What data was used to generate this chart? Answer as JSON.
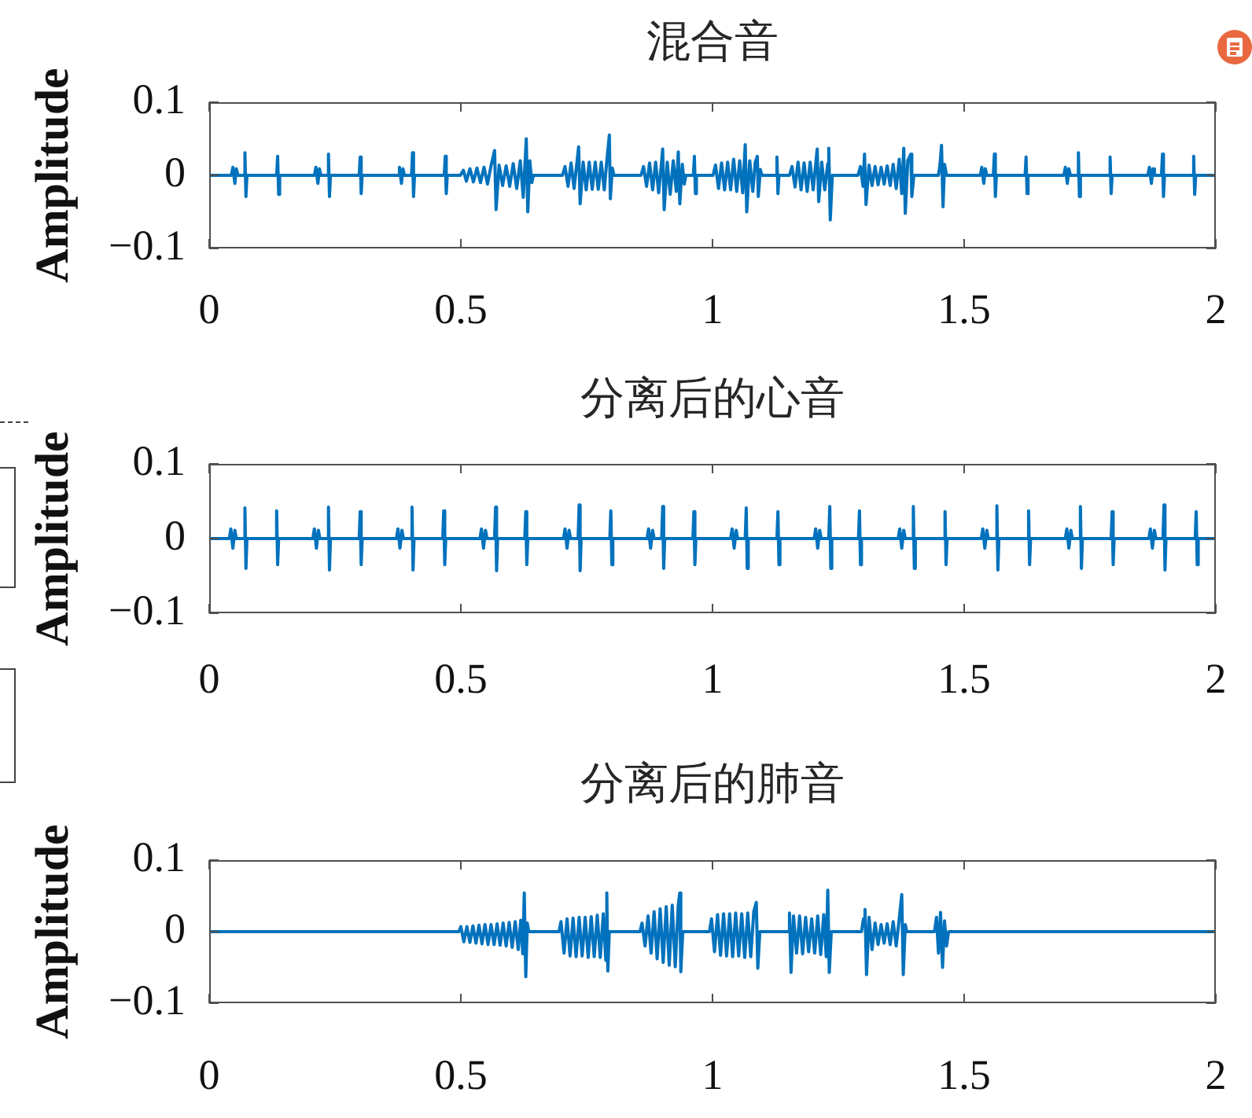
{
  "chart_data": [
    {
      "type": "line",
      "title": "混合音",
      "ylabel": "Amplitude",
      "color": "#0072bd",
      "xlim": [
        0,
        2
      ],
      "ylim": [
        -0.1,
        0.1
      ],
      "xticks": [
        0,
        0.5,
        1,
        1.5,
        2
      ],
      "yticks": [
        -0.1,
        0,
        0.1
      ],
      "x": [
        0,
        0.044,
        0.047,
        0.051,
        0.054,
        0.057,
        0.069,
        0.071,
        0.073,
        0.075,
        0.134,
        0.136,
        0.138,
        0.14,
        0.209,
        0.212,
        0.216,
        0.219,
        0.222,
        0.235,
        0.237,
        0.239,
        0.241,
        0.298,
        0.3,
        0.302,
        0.304,
        0.375,
        0.378,
        0.382,
        0.385,
        0.388,
        0.402,
        0.404,
        0.406,
        0.408,
        0.467,
        0.469,
        0.471,
        0.473,
        0.499,
        0.505,
        0.511,
        0.518,
        0.525,
        0.532,
        0.539,
        0.546,
        0.553,
        0.56,
        0.567,
        0.57,
        0.576,
        0.583,
        0.59,
        0.597,
        0.604,
        0.611,
        0.618,
        0.624,
        0.63,
        0.633,
        0.637,
        0.641,
        0.644,
        0.702,
        0.707,
        0.713,
        0.719,
        0.725,
        0.731,
        0.734,
        0.737,
        0.743,
        0.749,
        0.755,
        0.761,
        0.767,
        0.773,
        0.779,
        0.785,
        0.79,
        0.795,
        0.797,
        0.801,
        0.804,
        0.858,
        0.863,
        0.869,
        0.875,
        0.881,
        0.887,
        0.893,
        0.899,
        0.901,
        0.904,
        0.91,
        0.916,
        0.922,
        0.928,
        0.932,
        0.935,
        0.94,
        0.944,
        0.947,
        0.962,
        0.964,
        0.966,
        0.968,
        1.001,
        1.006,
        1.012,
        1.018,
        1.024,
        1.03,
        1.036,
        1.042,
        1.048,
        1.054,
        1.06,
        1.065,
        1.068,
        1.074,
        1.08,
        1.085,
        1.089,
        1.091,
        1.095,
        1.098,
        1.126,
        1.128,
        1.13,
        1.132,
        1.153,
        1.158,
        1.164,
        1.17,
        1.176,
        1.182,
        1.188,
        1.194,
        1.2,
        1.208,
        1.211,
        1.217,
        1.223,
        1.229,
        1.231,
        1.234,
        1.238,
        1.289,
        1.294,
        1.299,
        1.302,
        1.305,
        1.311,
        1.317,
        1.323,
        1.329,
        1.335,
        1.341,
        1.347,
        1.353,
        1.359,
        1.365,
        1.371,
        1.376,
        1.38,
        1.383,
        1.388,
        1.394,
        1.396,
        1.4,
        1.449,
        1.452,
        1.455,
        1.458,
        1.461,
        1.465,
        1.532,
        1.535,
        1.539,
        1.542,
        1.545,
        1.558,
        1.56,
        1.562,
        1.564,
        1.621,
        1.623,
        1.625,
        1.627,
        1.698,
        1.701,
        1.705,
        1.708,
        1.711,
        1.725,
        1.727,
        1.729,
        1.731,
        1.788,
        1.79,
        1.792,
        1.794,
        1.865,
        1.868,
        1.872,
        1.875,
        1.878,
        1.892,
        1.894,
        1.896,
        1.898,
        1.954,
        1.956,
        1.958,
        1.96,
        2
      ],
      "values": [
        0,
        0,
        0.011,
        -0.011,
        0.009,
        0,
        0,
        0.031,
        -0.029,
        0,
        0,
        0.026,
        -0.026,
        0,
        0,
        0.011,
        -0.011,
        0.009,
        0,
        0,
        0.029,
        -0.029,
        0,
        0,
        0.025,
        -0.025,
        0,
        0,
        0.011,
        -0.011,
        0.009,
        0,
        0,
        0.031,
        -0.029,
        0,
        0,
        0.026,
        -0.025,
        0,
        0,
        0.007,
        -0.008,
        0.009,
        -0.009,
        0.01,
        -0.01,
        0.011,
        -0.012,
        0.013,
        0.034,
        -0.047,
        0.014,
        -0.014,
        0.013,
        -0.015,
        0.016,
        -0.018,
        0.02,
        -0.03,
        0.05,
        -0.05,
        0.02,
        -0.01,
        0,
        0,
        0.012,
        -0.015,
        0.017,
        -0.018,
        0.02,
        0.039,
        -0.039,
        0.018,
        -0.02,
        0.018,
        -0.019,
        0.018,
        -0.019,
        0.018,
        -0.02,
        0.02,
        0.055,
        -0.032,
        0.01,
        0,
        0,
        0.012,
        -0.015,
        0.017,
        -0.02,
        0.018,
        -0.024,
        0.02,
        0.036,
        -0.047,
        0.018,
        -0.026,
        0.02,
        -0.022,
        0.032,
        -0.039,
        0.015,
        -0.012,
        0,
        0,
        0.026,
        -0.025,
        0,
        0,
        0.014,
        -0.018,
        0.017,
        -0.02,
        0.018,
        -0.02,
        0.022,
        -0.022,
        0.02,
        -0.024,
        0.042,
        -0.05,
        0.02,
        -0.022,
        0.018,
        0.026,
        -0.029,
        0.008,
        0,
        0,
        0.025,
        -0.025,
        0,
        0,
        0.012,
        -0.016,
        0.018,
        -0.02,
        0.017,
        -0.022,
        0.018,
        -0.02,
        0.036,
        -0.036,
        0.018,
        -0.02,
        0.016,
        0.037,
        -0.061,
        0,
        0,
        0.012,
        -0.015,
        0.029,
        -0.04,
        0.014,
        -0.014,
        0.012,
        -0.013,
        0.011,
        -0.012,
        0.013,
        -0.014,
        0.015,
        -0.018,
        0.022,
        -0.025,
        0.037,
        -0.052,
        0.02,
        0.029,
        -0.029,
        0,
        0,
        0.015,
        0.041,
        -0.043,
        0.015,
        0,
        0,
        0.011,
        -0.011,
        0.009,
        0,
        0,
        0.029,
        -0.029,
        0,
        0,
        0.025,
        -0.025,
        0,
        0,
        0.011,
        -0.011,
        0.009,
        0,
        0,
        0.031,
        -0.029,
        0,
        0,
        0.025,
        -0.025,
        0,
        0,
        0.011,
        -0.011,
        0.009,
        0,
        0,
        0.029,
        -0.029,
        0,
        0,
        0.026,
        -0.026,
        0,
        0
      ]
    },
    {
      "type": "line",
      "title": "分离后的心音",
      "ylabel": "Amplitude",
      "color": "#0072bd",
      "xlim": [
        0,
        2
      ],
      "ylim": [
        -0.1,
        0.1
      ],
      "xticks": [
        0,
        0.5,
        1,
        1.5,
        2
      ],
      "yticks": [
        -0.1,
        0,
        0.1
      ],
      "x": [
        0,
        0.04,
        0.043,
        0.047,
        0.051,
        0.054,
        0.069,
        0.071,
        0.073,
        0.075,
        0.132,
        0.134,
        0.136,
        0.138,
        0.206,
        0.209,
        0.213,
        0.217,
        0.22,
        0.235,
        0.237,
        0.239,
        0.241,
        0.298,
        0.3,
        0.302,
        0.304,
        0.372,
        0.375,
        0.379,
        0.383,
        0.386,
        0.401,
        0.403,
        0.405,
        0.407,
        0.464,
        0.466,
        0.468,
        0.47,
        0.538,
        0.541,
        0.545,
        0.549,
        0.552,
        0.567,
        0.569,
        0.571,
        0.573,
        0.627,
        0.629,
        0.631,
        0.633,
        0.704,
        0.707,
        0.711,
        0.715,
        0.718,
        0.733,
        0.735,
        0.737,
        0.739,
        0.796,
        0.798,
        0.8,
        0.802,
        0.87,
        0.873,
        0.877,
        0.881,
        0.884,
        0.899,
        0.901,
        0.903,
        0.905,
        0.961,
        0.963,
        0.965,
        0.967,
        1.036,
        1.039,
        1.043,
        1.047,
        1.05,
        1.065,
        1.067,
        1.069,
        1.071,
        1.128,
        1.13,
        1.132,
        1.134,
        1.202,
        1.205,
        1.209,
        1.213,
        1.216,
        1.231,
        1.233,
        1.235,
        1.237,
        1.29,
        1.292,
        1.294,
        1.296,
        1.369,
        1.372,
        1.376,
        1.38,
        1.383,
        1.397,
        1.399,
        1.401,
        1.403,
        1.46,
        1.462,
        1.464,
        1.466,
        1.534,
        1.537,
        1.541,
        1.545,
        1.548,
        1.563,
        1.565,
        1.567,
        1.569,
        1.626,
        1.628,
        1.63,
        1.632,
        1.701,
        1.704,
        1.708,
        1.712,
        1.715,
        1.729,
        1.731,
        1.733,
        1.735,
        1.792,
        1.794,
        1.796,
        1.798,
        1.867,
        1.87,
        1.874,
        1.878,
        1.881,
        1.895,
        1.897,
        1.899,
        1.901,
        1.959,
        1.961,
        1.963,
        1.965,
        2
      ],
      "values": [
        0,
        0,
        0.013,
        -0.013,
        0.011,
        0,
        0,
        0.041,
        -0.04,
        0,
        0,
        0.037,
        -0.035,
        0,
        0,
        0.013,
        -0.013,
        0.011,
        0,
        0,
        0.042,
        -0.042,
        0,
        0,
        0.036,
        -0.035,
        0,
        0,
        0.013,
        -0.013,
        0.011,
        0,
        0,
        0.042,
        -0.042,
        0,
        0,
        0.037,
        -0.035,
        0,
        0,
        0.013,
        -0.013,
        0.011,
        0,
        0,
        0.042,
        -0.043,
        0,
        0,
        0.036,
        -0.035,
        0,
        0,
        0.013,
        -0.013,
        0.011,
        0,
        0,
        0.045,
        -0.043,
        0,
        0,
        0.037,
        -0.035,
        0,
        0,
        0.013,
        -0.013,
        0.011,
        0,
        0,
        0.043,
        -0.04,
        0,
        0,
        0.036,
        -0.035,
        0,
        0,
        0.013,
        -0.013,
        0.011,
        0,
        0,
        0.041,
        -0.04,
        0,
        0,
        0.036,
        -0.035,
        0,
        0,
        0.013,
        -0.013,
        0.011,
        0,
        0,
        0.043,
        -0.04,
        0,
        0,
        0.037,
        -0.035,
        0,
        0,
        0.013,
        -0.013,
        0.011,
        0,
        0,
        0.043,
        -0.04,
        0,
        0,
        0.036,
        -0.035,
        0,
        0,
        0.013,
        -0.013,
        0.011,
        0,
        0,
        0.044,
        -0.042,
        0,
        0,
        0.037,
        -0.035,
        0,
        0,
        0.013,
        -0.013,
        0.011,
        0,
        0,
        0.043,
        -0.04,
        0,
        0,
        0.036,
        -0.035,
        0,
        0,
        0.013,
        -0.013,
        0.011,
        0,
        0,
        0.045,
        -0.042,
        0,
        0,
        0.036,
        -0.035,
        0,
        0
      ]
    },
    {
      "type": "line",
      "title": "分离后的肺音",
      "ylabel": "Amplitude",
      "color": "#0072bd",
      "xlim": [
        0,
        2
      ],
      "ylim": [
        -0.1,
        0.1
      ],
      "xticks": [
        0,
        0.5,
        1,
        1.5,
        2
      ],
      "yticks": [
        -0.1,
        0,
        0.1
      ],
      "x": [
        0,
        0.496,
        0.5,
        0.506,
        0.512,
        0.518,
        0.524,
        0.53,
        0.536,
        0.542,
        0.548,
        0.554,
        0.56,
        0.566,
        0.572,
        0.578,
        0.584,
        0.59,
        0.596,
        0.602,
        0.608,
        0.614,
        0.619,
        0.623,
        0.626,
        0.629,
        0.632,
        0.635,
        0.695,
        0.699,
        0.705,
        0.711,
        0.717,
        0.723,
        0.729,
        0.735,
        0.741,
        0.747,
        0.753,
        0.759,
        0.765,
        0.771,
        0.777,
        0.783,
        0.788,
        0.79,
        0.792,
        0.795,
        0.856,
        0.86,
        0.866,
        0.872,
        0.878,
        0.884,
        0.89,
        0.896,
        0.902,
        0.908,
        0.914,
        0.92,
        0.926,
        0.932,
        0.935,
        0.937,
        0.941,
        0.994,
        0.998,
        1.004,
        1.01,
        1.016,
        1.022,
        1.028,
        1.034,
        1.04,
        1.046,
        1.052,
        1.058,
        1.064,
        1.07,
        1.076,
        1.082,
        1.087,
        1.09,
        1.094,
        1.15,
        1.153,
        1.156,
        1.161,
        1.167,
        1.173,
        1.179,
        1.185,
        1.191,
        1.197,
        1.203,
        1.209,
        1.215,
        1.221,
        1.226,
        1.229,
        1.232,
        1.236,
        1.296,
        1.3,
        1.303,
        1.306,
        1.311,
        1.317,
        1.323,
        1.329,
        1.335,
        1.341,
        1.347,
        1.353,
        1.359,
        1.365,
        1.371,
        1.376,
        1.379,
        1.383,
        1.386,
        1.441,
        1.445,
        1.449,
        1.453,
        1.457,
        1.461,
        1.465,
        1.469,
        2
      ],
      "values": [
        0,
        0,
        0.007,
        -0.014,
        0.007,
        -0.015,
        0.008,
        -0.016,
        0.009,
        -0.017,
        0.01,
        -0.018,
        0.01,
        -0.018,
        0.011,
        -0.019,
        0.012,
        -0.02,
        0.013,
        -0.022,
        0.014,
        -0.025,
        0.016,
        -0.031,
        0.054,
        -0.063,
        0.012,
        0,
        0,
        0.014,
        -0.03,
        0.018,
        -0.034,
        0.019,
        -0.035,
        0.02,
        -0.034,
        0.02,
        -0.036,
        0.021,
        -0.035,
        0.023,
        -0.036,
        0.025,
        -0.04,
        0.054,
        -0.055,
        0,
        0,
        0.012,
        -0.02,
        0.022,
        -0.03,
        0.028,
        -0.038,
        0.032,
        -0.043,
        0.035,
        -0.047,
        0.037,
        -0.049,
        0.038,
        0.054,
        -0.056,
        0,
        0,
        0.018,
        -0.028,
        0.024,
        -0.033,
        0.025,
        -0.034,
        0.025,
        -0.035,
        0.026,
        -0.034,
        0.025,
        -0.036,
        0.026,
        -0.035,
        0.028,
        0.041,
        -0.051,
        0,
        0,
        0.026,
        -0.057,
        0.022,
        -0.03,
        0.022,
        -0.031,
        0.02,
        -0.028,
        0.018,
        -0.03,
        0.022,
        -0.032,
        0.024,
        -0.035,
        0.058,
        -0.057,
        0,
        0,
        0.018,
        0.031,
        -0.06,
        0.02,
        -0.025,
        0.012,
        -0.018,
        0.01,
        -0.016,
        0.011,
        -0.018,
        0.014,
        -0.02,
        0.018,
        0.052,
        -0.06,
        0.01,
        0,
        0,
        0.02,
        -0.03,
        0.027,
        -0.05,
        0.015,
        -0.02,
        0,
        0
      ]
    }
  ]
}
